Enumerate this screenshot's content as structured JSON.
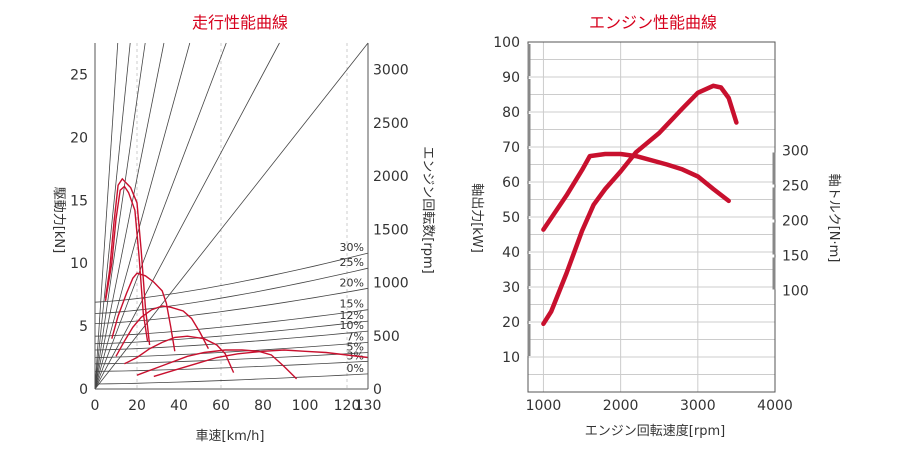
{
  "chart_data": [
    {
      "type": "line",
      "title": "走行性能曲線",
      "xlabel": "車速[km/h]",
      "ylabel": "駆動力[kN]",
      "y2label": "エンジン回転数[rpm]",
      "xlim": [
        0,
        130
      ],
      "ylim": [
        0,
        27.5
      ],
      "y2lim": [
        0,
        3250
      ],
      "x_ticks": [
        "0",
        "20",
        "40",
        "60",
        "80",
        "100",
        "120",
        "130"
      ],
      "x_tick_values": [
        0,
        20,
        40,
        60,
        80,
        100,
        120,
        130
      ],
      "y_ticks": [
        "0",
        "5",
        "10",
        "15",
        "20",
        "25"
      ],
      "y_tick_values": [
        0,
        5,
        10,
        15,
        20,
        25
      ],
      "y2_ticks": [
        "0",
        "500",
        "1000",
        "1500",
        "2000",
        "2500",
        "3000"
      ],
      "y2_tick_values": [
        0,
        500,
        1000,
        1500,
        2000,
        2500,
        3000
      ],
      "engine_speed_lines_slope_rpm_per_kmh": [
        300,
        194,
        136,
        99,
        72,
        52,
        37,
        25
      ],
      "grade_lines": [
        {
          "label": "30%",
          "y0": 6.9,
          "y1": 10.8
        },
        {
          "label": "25%",
          "y0": 6.0,
          "y1": 9.6
        },
        {
          "label": "20%",
          "y0": 5.2,
          "y1": 8.0
        },
        {
          "label": "15%",
          "y0": 4.2,
          "y1": 6.3
        },
        {
          "label": "12%",
          "y0": 3.6,
          "y1": 5.4
        },
        {
          "label": "10%",
          "y0": 3.1,
          "y1": 4.6
        },
        {
          "label": "7%",
          "y0": 2.5,
          "y1": 3.7
        },
        {
          "label": "5%",
          "y0": 2.0,
          "y1": 2.9
        },
        {
          "label": "3%",
          "y0": 1.4,
          "y1": 2.2
        },
        {
          "label": "0%",
          "y0": 0.4,
          "y1": 1.2
        }
      ],
      "series": [
        {
          "values": [
            [
              5,
              7.2
            ],
            [
              7,
              9.5
            ],
            [
              9,
              13.2
            ],
            [
              11,
              16.2
            ],
            [
              13,
              16.7
            ],
            [
              17,
              16.0
            ],
            [
              20,
              14.8
            ],
            [
              22,
              11.0
            ],
            [
              24,
              6.5
            ],
            [
              26,
              3.5
            ]
          ]
        },
        {
          "values": [
            [
              5,
              7.0
            ],
            [
              8,
              10.0
            ],
            [
              10,
              13.5
            ],
            [
              12,
              15.8
            ],
            [
              14,
              16.1
            ],
            [
              16,
              15.6
            ],
            [
              19,
              14.2
            ],
            [
              21,
              10.5
            ],
            [
              23,
              6.0
            ],
            [
              25,
              3.8
            ]
          ]
        },
        {
          "values": [
            [
              8,
              4.0
            ],
            [
              11,
              5.8
            ],
            [
              15,
              7.6
            ],
            [
              18,
              8.8
            ],
            [
              20,
              9.2
            ],
            [
              24,
              9.0
            ],
            [
              28,
              8.5
            ],
            [
              32,
              7.8
            ],
            [
              34,
              6.8
            ],
            [
              36,
              5.0
            ],
            [
              38,
              3.0
            ]
          ]
        },
        {
          "values": [
            [
              10,
              2.6
            ],
            [
              14,
              3.8
            ],
            [
              18,
              4.9
            ],
            [
              22,
              5.7
            ],
            [
              27,
              6.3
            ],
            [
              32,
              6.6
            ],
            [
              36,
              6.5
            ],
            [
              42,
              6.2
            ],
            [
              46,
              5.6
            ],
            [
              50,
              4.5
            ],
            [
              54,
              3.2
            ]
          ]
        },
        {
          "values": [
            [
              14,
              2.0
            ],
            [
              20,
              2.5
            ],
            [
              26,
              3.2
            ],
            [
              32,
              3.7
            ],
            [
              38,
              4.1
            ],
            [
              44,
              4.2
            ],
            [
              52,
              4.0
            ],
            [
              58,
              3.5
            ],
            [
              62,
              2.8
            ],
            [
              66,
              1.3
            ]
          ]
        },
        {
          "values": [
            [
              20,
              1.1
            ],
            [
              28,
              1.6
            ],
            [
              36,
              2.1
            ],
            [
              44,
              2.6
            ],
            [
              52,
              2.9
            ],
            [
              62,
              3.1
            ],
            [
              70,
              3.1
            ],
            [
              78,
              3.0
            ],
            [
              84,
              2.7
            ],
            [
              90,
              1.8
            ],
            [
              96,
              0.8
            ]
          ]
        },
        {
          "values": [
            [
              28,
              1.0
            ],
            [
              38,
              1.5
            ],
            [
              48,
              2.0
            ],
            [
              58,
              2.5
            ],
            [
              68,
              2.8
            ],
            [
              80,
              3.0
            ],
            [
              90,
              3.1
            ],
            [
              100,
              3.0
            ],
            [
              110,
              2.9
            ],
            [
              120,
              2.7
            ],
            [
              130,
              2.5
            ]
          ]
        }
      ]
    },
    {
      "type": "line",
      "title": "エンジン性能曲線",
      "xlabel": "エンジン回転速度[rpm]",
      "ylabel": "軸出力[kW]",
      "y2label": "軸トルク[N·m]",
      "xlim": [
        800,
        4000
      ],
      "ylim": [
        0,
        100
      ],
      "x_ticks": [
        "1000",
        "2000",
        "3000",
        "4000"
      ],
      "x_tick_values": [
        1000,
        2000,
        3000,
        4000
      ],
      "y_ticks": [
        "10",
        "20",
        "30",
        "40",
        "50",
        "60",
        "70",
        "80",
        "90",
        "100"
      ],
      "y_tick_values": [
        10,
        20,
        30,
        40,
        50,
        60,
        70,
        80,
        90,
        100
      ],
      "y2_ticks": [
        "100",
        "150",
        "200",
        "250",
        "300"
      ],
      "y2_tick_values": [
        100,
        150,
        200,
        250,
        300
      ],
      "torque_axis_map": {
        "t1": 100,
        "kw1": 29,
        "t2": 300,
        "kw2": 69
      },
      "series": [
        {
          "name": "軸出力",
          "axis": "left",
          "values": [
            [
              1000,
              19.5
            ],
            [
              1100,
              23
            ],
            [
              1300,
              34
            ],
            [
              1500,
              46
            ],
            [
              1650,
              53.5
            ],
            [
              1800,
              58
            ],
            [
              2000,
              63
            ],
            [
              2200,
              68.5
            ],
            [
              2500,
              74
            ],
            [
              2800,
              81
            ],
            [
              3000,
              85.5
            ],
            [
              3200,
              87.5
            ],
            [
              3300,
              87
            ],
            [
              3400,
              84
            ],
            [
              3500,
              77
            ]
          ]
        },
        {
          "name": "軸トルク",
          "axis": "right",
          "values": [
            [
              1000,
              187
            ],
            [
              1300,
              236
            ],
            [
              1500,
              272
            ],
            [
              1600,
              292
            ],
            [
              1800,
              295
            ],
            [
              2000,
              295
            ],
            [
              2200,
              292
            ],
            [
              2600,
              280
            ],
            [
              2800,
              273
            ],
            [
              3000,
              263
            ],
            [
              3200,
              245
            ],
            [
              3400,
              228
            ]
          ]
        }
      ]
    }
  ]
}
